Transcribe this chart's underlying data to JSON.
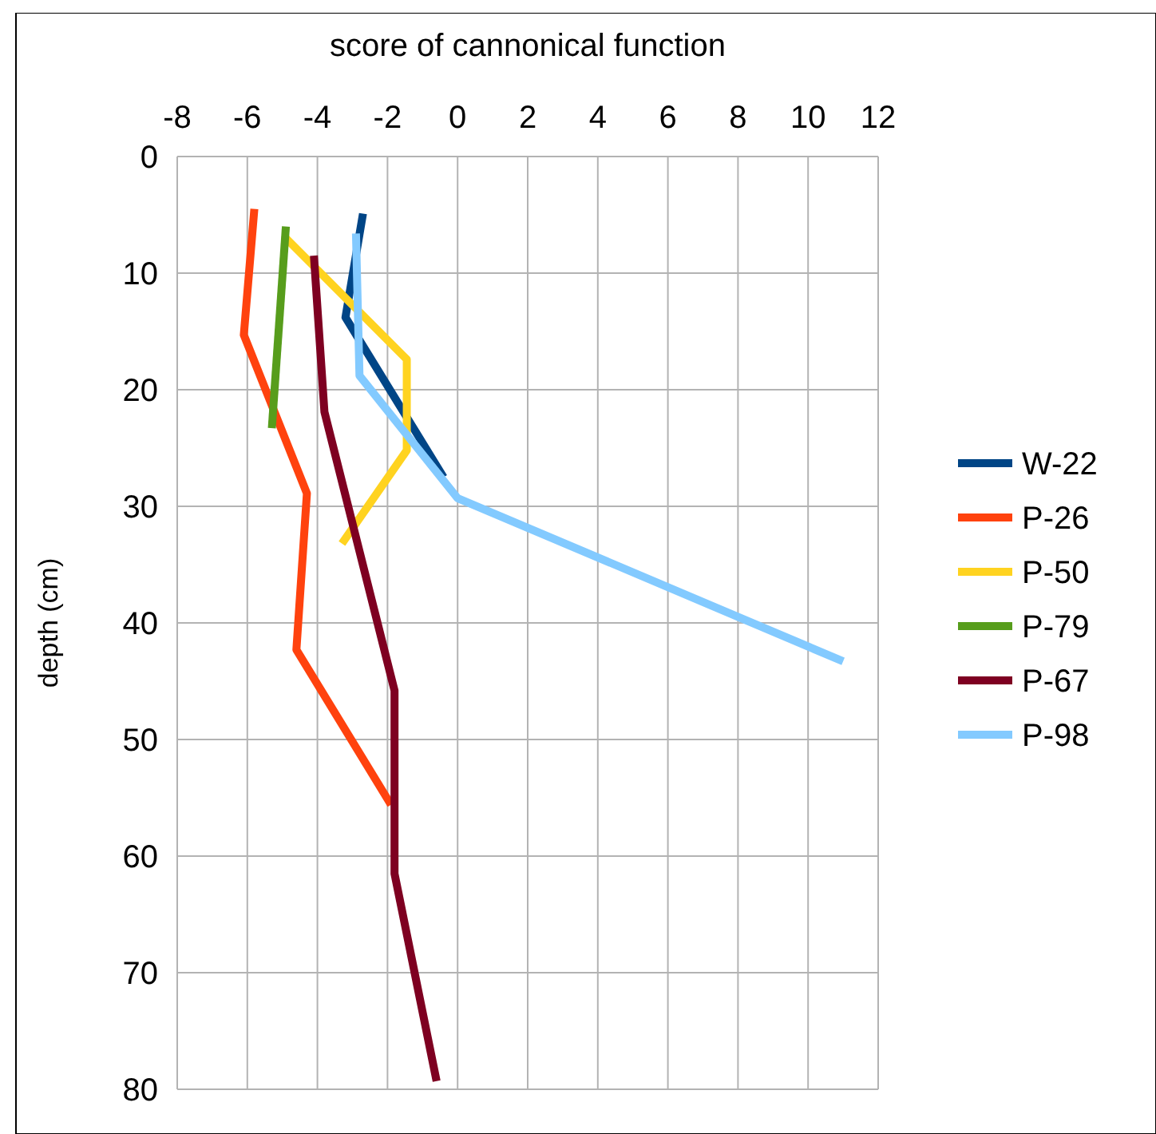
{
  "chart_data": {
    "type": "line",
    "title": "score of cannonical function",
    "ylabel": "depth (cm)",
    "xlim": [
      -8,
      12
    ],
    "xticks": [
      -8,
      -6,
      -4,
      -2,
      0,
      2,
      4,
      6,
      8,
      10,
      12
    ],
    "ylim": [
      80,
      0
    ],
    "yticks": [
      0,
      10,
      20,
      30,
      40,
      50,
      60,
      70,
      80
    ],
    "grid": true,
    "legend": "right",
    "marker": "none",
    "series": [
      {
        "name": "W-22",
        "color": "#004586",
        "x": [
          -2.7,
          -3.2,
          -0.4
        ],
        "values": [
          4.9,
          13.8,
          27.5
        ]
      },
      {
        "name": "P-26",
        "color": "#ff420e",
        "x": [
          -5.8,
          -6.1,
          -4.3,
          -4.6,
          -1.9
        ],
        "values": [
          4.5,
          15.3,
          28.9,
          42.3,
          55.6
        ]
      },
      {
        "name": "P-50",
        "color": "#ffd320",
        "x": [
          -4.9,
          -1.45,
          -1.45,
          -3.3
        ],
        "values": [
          7.0,
          17.4,
          25.2,
          33.2
        ]
      },
      {
        "name": "P-79",
        "color": "#579d1c",
        "x": [
          -4.9,
          -5.3
        ],
        "values": [
          6.0,
          23.3
        ]
      },
      {
        "name": "P-67",
        "color": "#7e0021",
        "x": [
          -4.1,
          -3.8,
          -1.8,
          -1.8,
          -0.6
        ],
        "values": [
          8.5,
          21.9,
          45.8,
          61.5,
          79.3
        ]
      },
      {
        "name": "P-98",
        "color": "#83caff",
        "x": [
          -2.9,
          -2.8,
          0,
          11.0
        ],
        "values": [
          6.6,
          18.8,
          29.3,
          43.3
        ]
      }
    ]
  }
}
